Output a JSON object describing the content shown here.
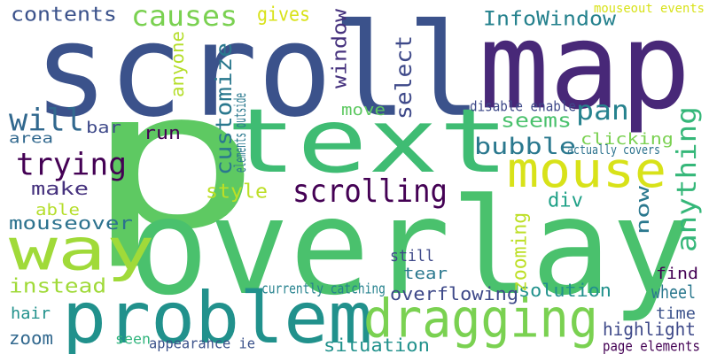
{
  "cloud": {
    "background": "#ffffff",
    "words": [
      {
        "text": "p",
        "color": "#5ec962"
      },
      {
        "text": "overlay",
        "color": "#4ac16d"
      },
      {
        "text": "map",
        "color": "#482878"
      },
      {
        "text": "scroll",
        "color": "#3b528b"
      },
      {
        "text": "text",
        "color": "#3fbc73"
      },
      {
        "text": "problem",
        "color": "#21918c"
      },
      {
        "text": "way",
        "color": "#a0da39"
      },
      {
        "text": "dragging",
        "color": "#7ad151"
      },
      {
        "text": "mouse",
        "color": "#d8e219"
      },
      {
        "text": "scrolling",
        "color": "#440154"
      },
      {
        "text": "trying",
        "color": "#440154"
      },
      {
        "text": "will",
        "color": "#31688e"
      },
      {
        "text": "causes",
        "color": "#7ad151"
      },
      {
        "text": "contents",
        "color": "#3b528b"
      },
      {
        "text": "gives",
        "color": "#d8e219"
      },
      {
        "text": "InfoWindow",
        "color": "#26828e"
      },
      {
        "text": "pan",
        "color": "#26828e"
      },
      {
        "text": "seems",
        "color": "#4ac16d"
      },
      {
        "text": "bubble",
        "color": "#2a788e"
      },
      {
        "text": "customize",
        "color": "#2a788e"
      },
      {
        "text": "anything",
        "color": "#35b779"
      },
      {
        "text": "window",
        "color": "#46327e"
      },
      {
        "text": "select",
        "color": "#3e4989"
      },
      {
        "text": "anyone",
        "color": "#b5de2b"
      },
      {
        "text": "move",
        "color": "#5ec962"
      },
      {
        "text": "run",
        "color": "#440154"
      },
      {
        "text": "bar",
        "color": "#3e4989"
      },
      {
        "text": "area",
        "color": "#31688e"
      },
      {
        "text": "make",
        "color": "#46327e"
      },
      {
        "text": "able",
        "color": "#b5de2b"
      },
      {
        "text": "style",
        "color": "#bddf26"
      },
      {
        "text": "div",
        "color": "#1fa187"
      },
      {
        "text": "mouseover",
        "color": "#2c728e"
      },
      {
        "text": "instead",
        "color": "#a0da39"
      },
      {
        "text": "hair",
        "color": "#21918c"
      },
      {
        "text": "zoom",
        "color": "#31688e"
      },
      {
        "text": "seen",
        "color": "#2fb47c"
      },
      {
        "text": "appearance ie",
        "color": "#3b528b"
      },
      {
        "text": "situation",
        "color": "#21918c"
      },
      {
        "text": "tear",
        "color": "#2a788e"
      },
      {
        "text": "still",
        "color": "#3e4989"
      },
      {
        "text": "overflowing",
        "color": "#3e4989"
      },
      {
        "text": "solution",
        "color": "#21918c"
      },
      {
        "text": "currently catching",
        "color": "#26828e"
      },
      {
        "text": "zooming",
        "color": "#bddf26"
      },
      {
        "text": "now",
        "color": "#2a788e"
      },
      {
        "text": "find",
        "color": "#440154"
      },
      {
        "text": "wheel",
        "color": "#2a788e"
      },
      {
        "text": "time",
        "color": "#3b528b"
      },
      {
        "text": "highlight",
        "color": "#3e4989"
      },
      {
        "text": "page elements",
        "color": "#440154"
      },
      {
        "text": "clicking",
        "color": "#7ad151"
      },
      {
        "text": "actually covers",
        "color": "#2c728e"
      },
      {
        "text": "disable enable",
        "color": "#3e4989"
      },
      {
        "text": "elements outside",
        "color": "#2a788e"
      },
      {
        "text": "mouseout events",
        "color": "#d8e219"
      }
    ]
  }
}
